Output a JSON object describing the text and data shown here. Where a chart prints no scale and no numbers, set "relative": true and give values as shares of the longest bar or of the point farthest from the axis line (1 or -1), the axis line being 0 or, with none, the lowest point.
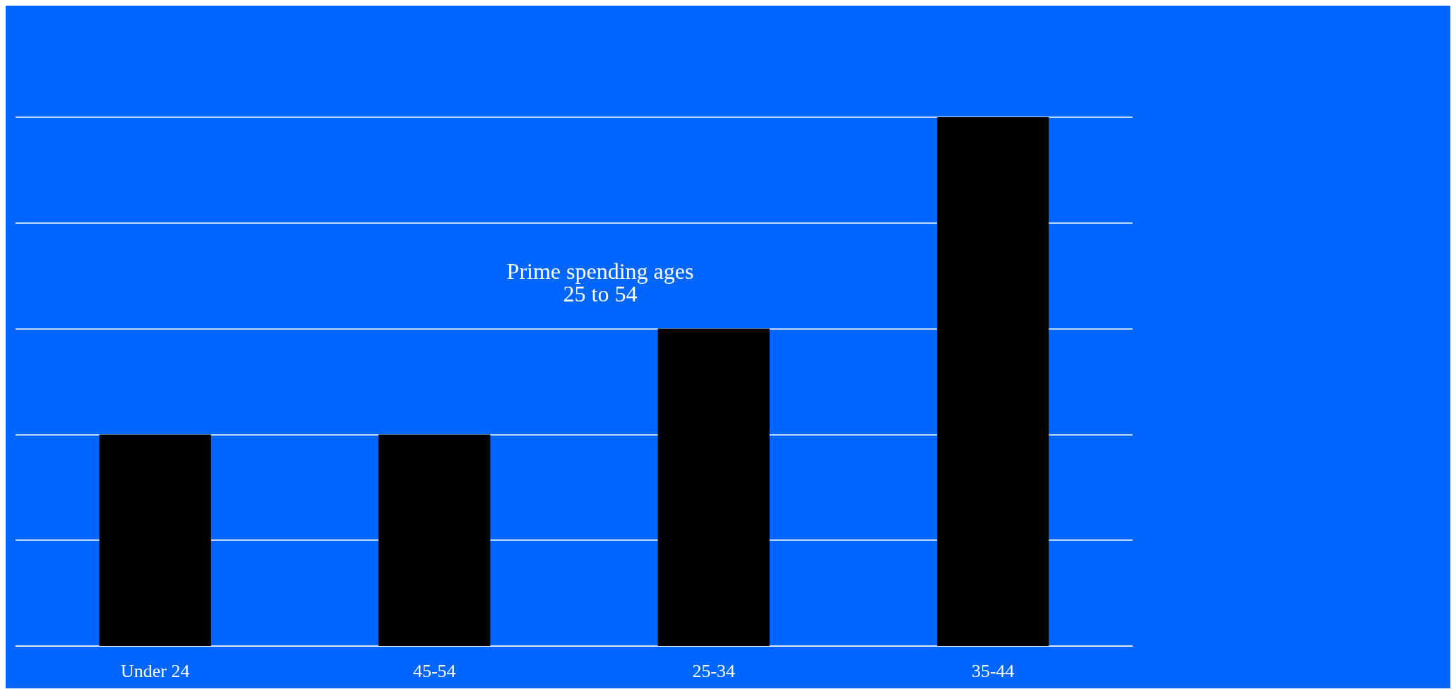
{
  "chart_data": {
    "type": "bar",
    "relative": true,
    "categories": [
      "Under 24",
      "45-54",
      "25-34",
      "35-44"
    ],
    "values": [
      0.4,
      0.4,
      0.6,
      1
    ],
    "color": "#000000",
    "grid": "y",
    "annotations": [
      "Prime spending ages\n25 to 54"
    ]
  }
}
